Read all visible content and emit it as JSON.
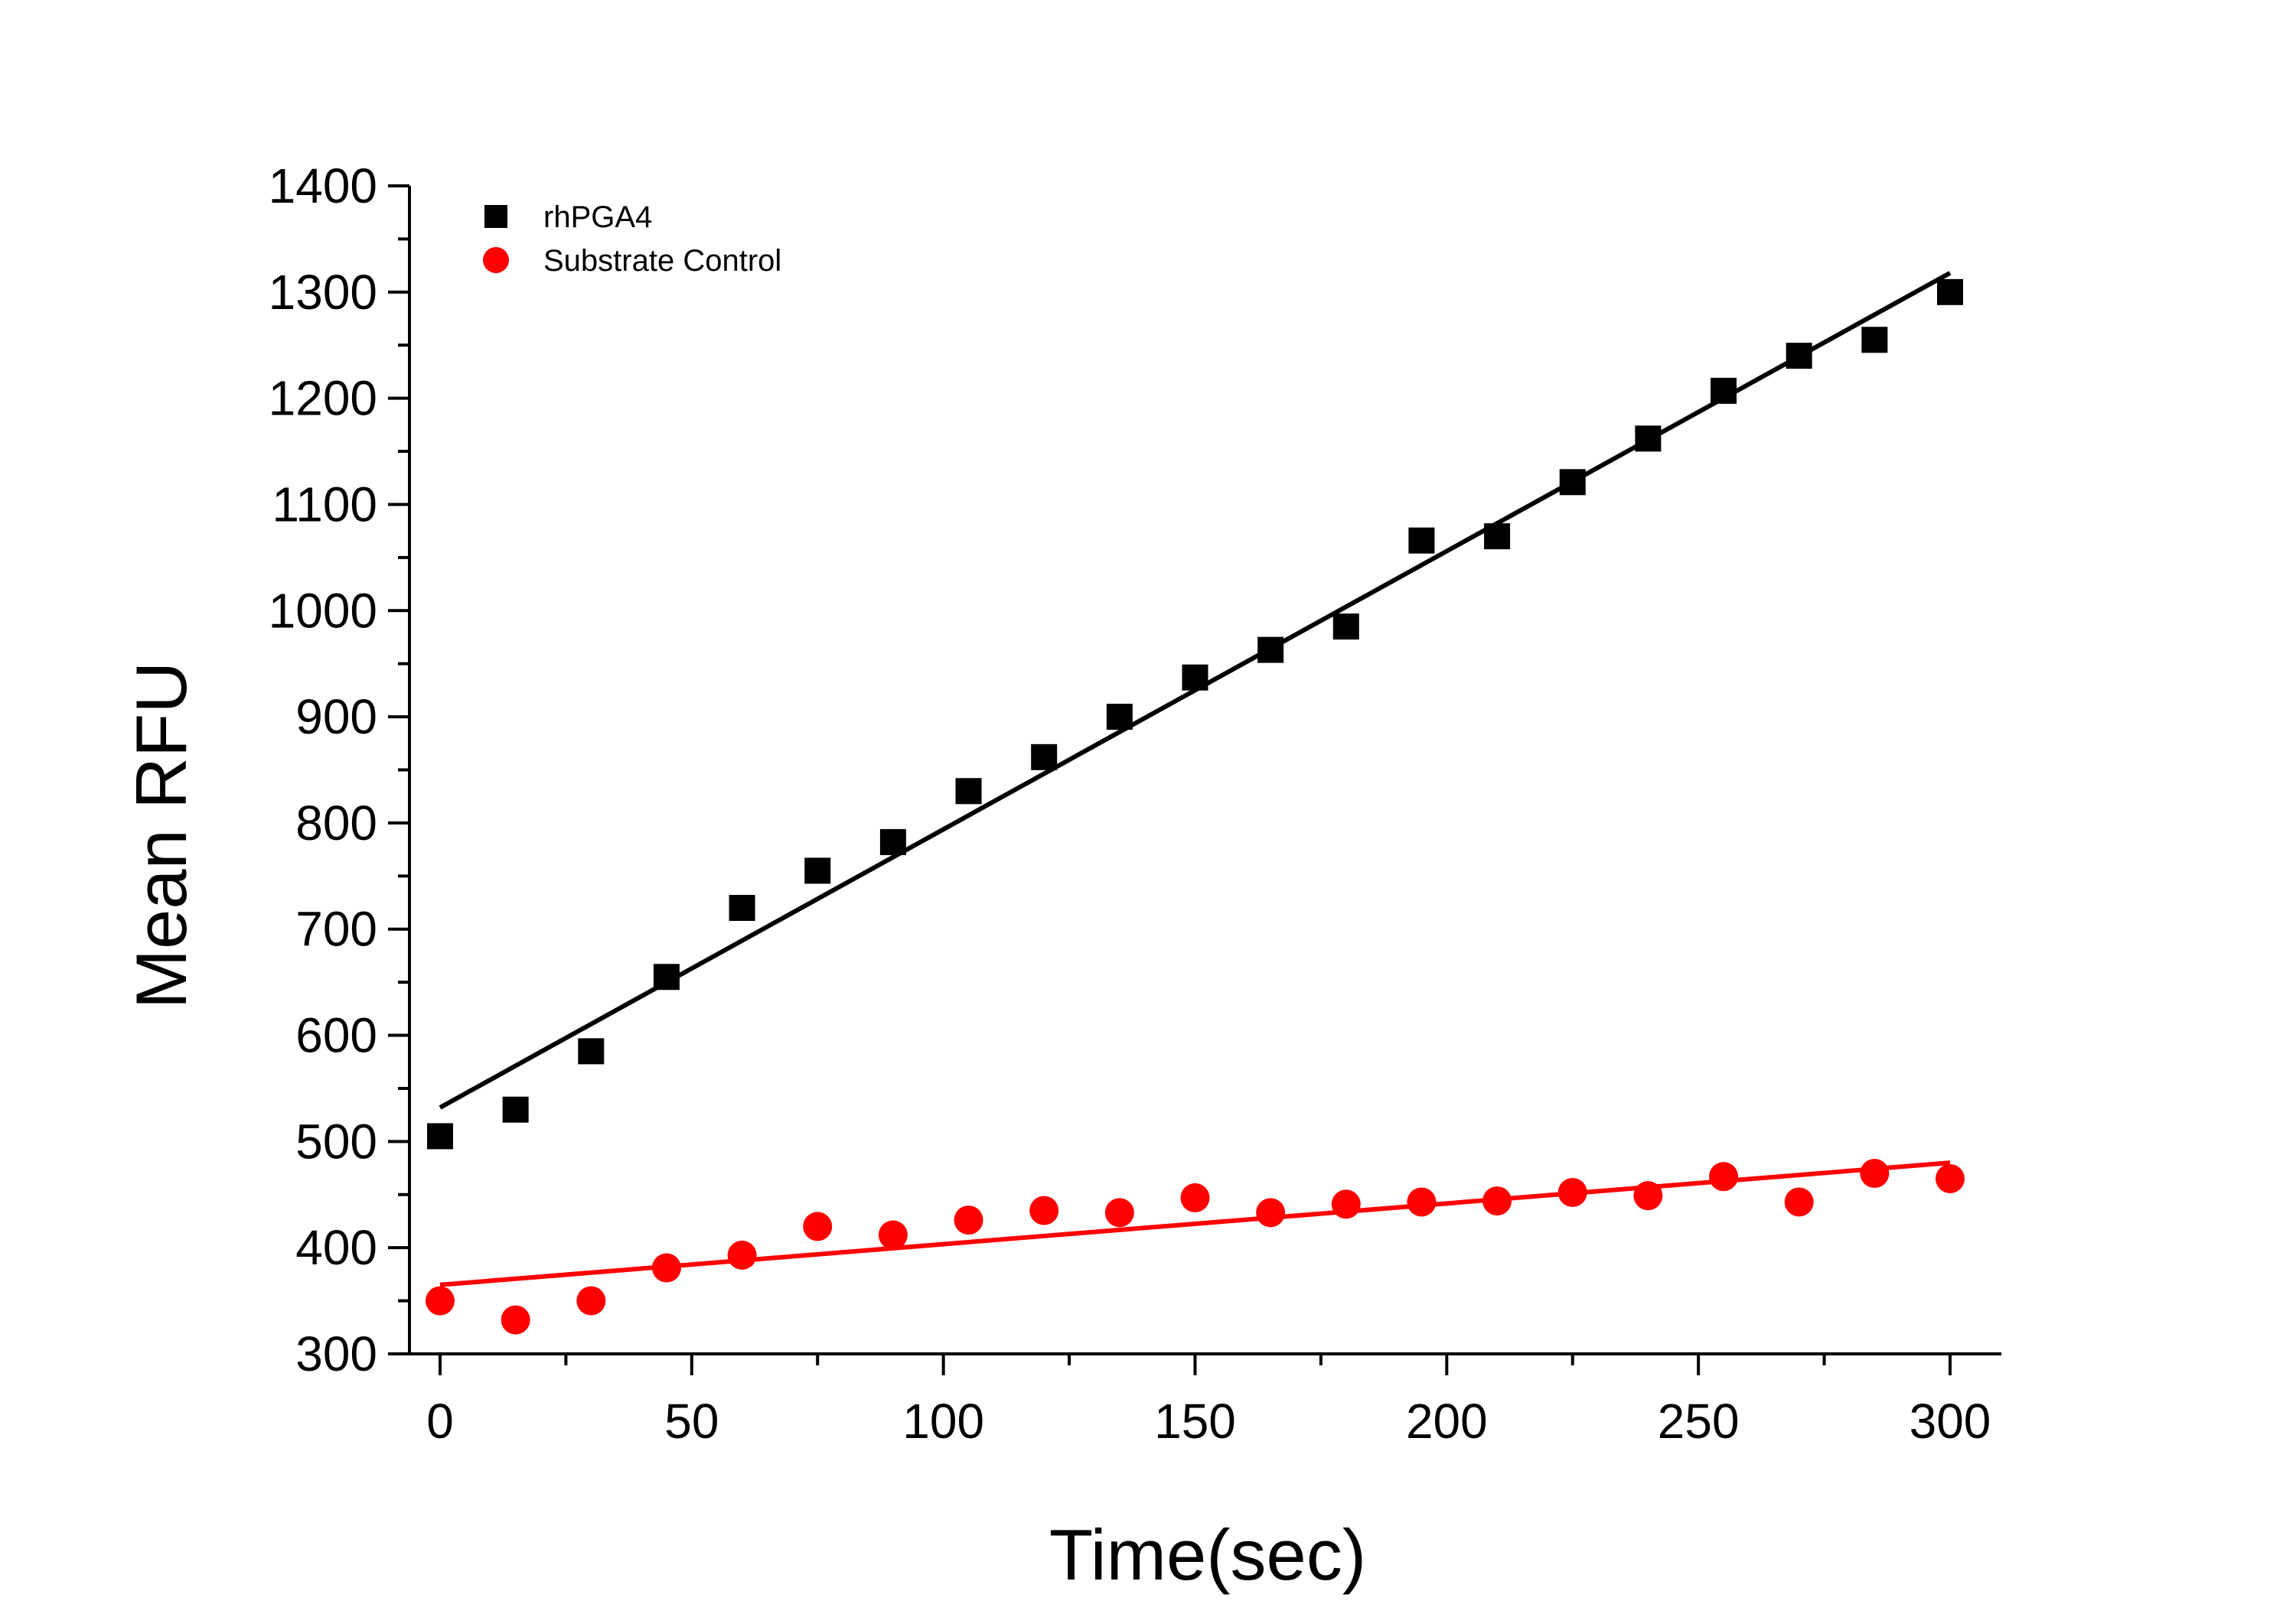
{
  "chart_data": {
    "type": "scatter",
    "title": "",
    "xlabel": "Time(sec)",
    "ylabel": "Mean RFU",
    "xlim": [
      -5,
      310
    ],
    "ylim": [
      300,
      1400
    ],
    "x_ticks": [
      0,
      50,
      100,
      150,
      200,
      250,
      300
    ],
    "y_ticks": [
      300,
      400,
      500,
      600,
      700,
      800,
      900,
      1000,
      1100,
      1200,
      1300,
      1400
    ],
    "grid": false,
    "legend_position": "top-left",
    "x": [
      0,
      15,
      30,
      45,
      60,
      75,
      90,
      105,
      120,
      135,
      150,
      165,
      180,
      195,
      210,
      225,
      240,
      255,
      270,
      285,
      300
    ],
    "series": [
      {
        "name": "rhPGA4",
        "marker": "square",
        "color": "#000000",
        "values": [
          505,
          530,
          585,
          655,
          720,
          755,
          782,
          830,
          862,
          900,
          937,
          963,
          985,
          1066,
          1070,
          1121,
          1162,
          1207,
          1240,
          1255,
          1300
        ],
        "fit": {
          "x": [
            0,
            300
          ],
          "y": [
            532,
            1318
          ]
        }
      },
      {
        "name": "Substrate Control",
        "marker": "circle",
        "color": "#ff0000",
        "values": [
          350,
          332,
          350,
          381,
          393,
          420,
          412,
          426,
          435,
          433,
          447,
          433,
          441,
          443,
          444,
          452,
          449,
          467,
          443,
          470,
          465
        ],
        "fit": {
          "x": [
            0,
            300
          ],
          "y": [
            365,
            480
          ]
        }
      }
    ]
  }
}
